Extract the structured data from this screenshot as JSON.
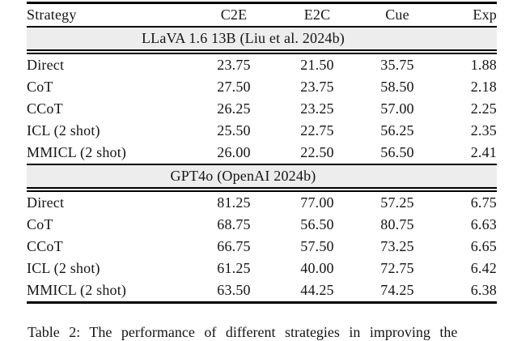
{
  "table": {
    "columns": [
      "Strategy",
      "C2E",
      "E2C",
      "Cue",
      "Exp"
    ],
    "sections": [
      {
        "header": "LLaVA 1.6 13B (Liu et al. 2024b)",
        "rows": [
          [
            "Direct",
            "23.75",
            "21.50",
            "35.75",
            "1.88"
          ],
          [
            "CoT",
            "27.50",
            "23.75",
            "58.50",
            "2.18"
          ],
          [
            "CCoT",
            "26.25",
            "23.25",
            "57.00",
            "2.25"
          ],
          [
            "ICL (2 shot)",
            "25.50",
            "22.75",
            "56.25",
            "2.35"
          ],
          [
            "MMICL (2 shot)",
            "26.00",
            "22.50",
            "56.50",
            "2.41"
          ]
        ]
      },
      {
        "header": "GPT4o (OpenAI 2024b)",
        "rows": [
          [
            "Direct",
            "81.25",
            "77.00",
            "57.25",
            "6.75"
          ],
          [
            "CoT",
            "68.75",
            "56.50",
            "80.75",
            "6.63"
          ],
          [
            "CCoT",
            "66.75",
            "57.50",
            "73.25",
            "6.65"
          ],
          [
            "ICL (2 shot)",
            "61.25",
            "40.00",
            "72.75",
            "6.42"
          ],
          [
            "MMICL (2 shot)",
            "63.50",
            "44.25",
            "74.25",
            "6.38"
          ]
        ]
      }
    ]
  },
  "caption": "Table 2: The performance of different strategies in improving the",
  "colors": {
    "band_background": "#ededed",
    "rule": "#000000",
    "text": "#141414",
    "page_background": "#ffffff"
  }
}
